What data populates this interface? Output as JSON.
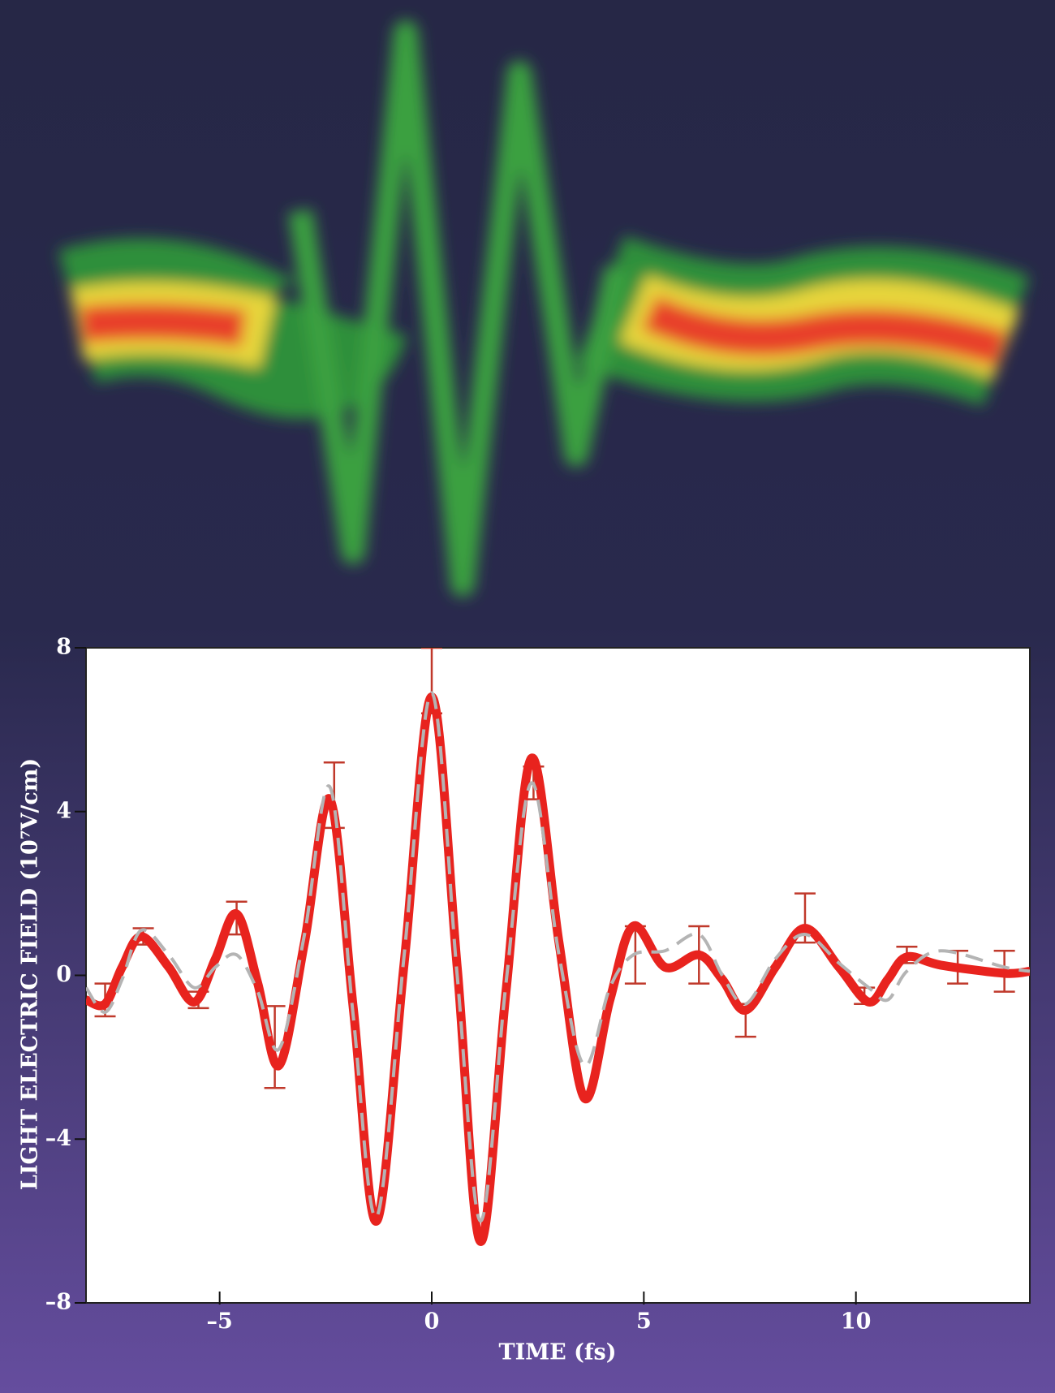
{
  "chart_data": {
    "type": "line",
    "xlabel": "TIME (fs)",
    "ylabel": "LIGHT ELECTRIC FIELD (10⁷V/cm)",
    "xlim": [
      -8.15,
      14.1
    ],
    "ylim": [
      -8,
      8
    ],
    "xticks": [
      {
        "value": -5,
        "label": "–5"
      },
      0,
      5,
      10
    ],
    "yticks": [
      {
        "value": -8,
        "label": "–8"
      },
      {
        "value": -4,
        "label": "–4"
      },
      0,
      4,
      8
    ],
    "x": [
      -8.15,
      -7.7,
      -7.3,
      -6.85,
      -6.2,
      -5.6,
      -5.1,
      -4.6,
      -4.1,
      -3.6,
      -3.0,
      -2.4,
      -1.85,
      -1.3,
      -0.65,
      0,
      0.6,
      1.15,
      1.75,
      2.35,
      3.0,
      3.6,
      4.2,
      4.75,
      5.5,
      6.3,
      6.85,
      7.4,
      8.1,
      8.8,
      9.6,
      10.3,
      10.75,
      11.2,
      12.0,
      13.5,
      14.1
    ],
    "series": [
      {
        "color": "#e8231e",
        "values": [
          -0.6,
          -0.7,
          0.2,
          0.95,
          0.2,
          -0.65,
          0.4,
          1.5,
          -0.2,
          -2.2,
          0.8,
          4.3,
          -0.8,
          -6.0,
          0.3,
          6.8,
          0.2,
          -6.5,
          -0.4,
          5.3,
          0.8,
          -3.0,
          -0.6,
          1.2,
          0.2,
          0.5,
          -0.1,
          -0.85,
          0.2,
          1.15,
          0.2,
          -0.65,
          -0.1,
          0.45,
          0.25,
          0.05,
          0.1
        ]
      },
      {
        "color": "#b4b4b4",
        "dashed": true,
        "values": [
          -0.3,
          -0.9,
          -0.1,
          1.1,
          0.5,
          -0.3,
          0.2,
          0.5,
          -0.4,
          -1.8,
          1.0,
          4.6,
          -1.0,
          -5.9,
          0.5,
          6.9,
          0.0,
          -6.0,
          -0.2,
          4.7,
          0.5,
          -2.2,
          -0.3,
          0.5,
          0.6,
          1.0,
          0.0,
          -0.7,
          0.4,
          1.0,
          0.3,
          -0.3,
          -0.6,
          0.1,
          0.6,
          0.2,
          0.1
        ]
      }
    ],
    "error_bars": {
      "color": "#c0392b",
      "x": [
        -7.7,
        -6.8,
        -5.5,
        -4.6,
        -3.7,
        -2.3,
        0,
        2.4,
        4.8,
        6.3,
        7.4,
        8.8,
        10.2,
        11.2,
        12.4,
        13.5
      ],
      "values": [
        -0.6,
        0.95,
        -0.6,
        1.4,
        -1.75,
        4.4,
        7.2,
        4.7,
        0.5,
        0.5,
        -1.1,
        1.4,
        -0.5,
        0.5,
        0.2,
        0.1
      ],
      "errors": [
        0.4,
        0.2,
        0.2,
        0.4,
        1.0,
        0.8,
        0.8,
        0.4,
        0.7,
        0.7,
        0.4,
        0.6,
        0.2,
        0.2,
        0.4,
        0.5
      ]
    }
  }
}
